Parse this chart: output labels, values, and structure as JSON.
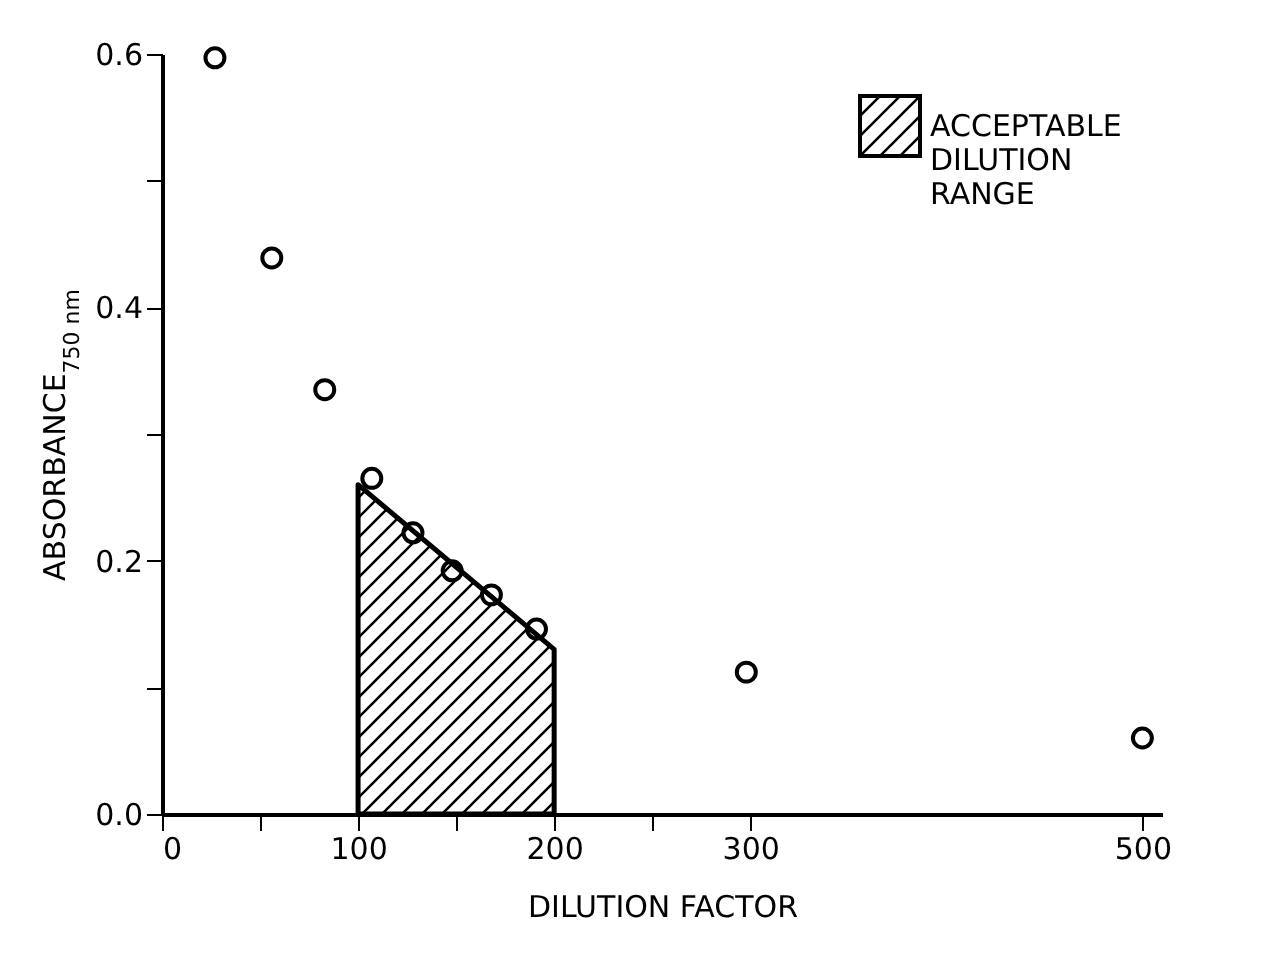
{
  "chart_data": {
    "type": "scatter",
    "xlabel": "DILUTION FACTOR",
    "ylabel": "ABSORBANCE$_{750 nm}$",
    "xlim": [
      0,
      510
    ],
    "ylim": [
      0,
      0.6
    ],
    "xticks": [
      0,
      {
        "value": 50,
        "label": null
      },
      100,
      {
        "value": 150,
        "label": null
      },
      200,
      {
        "value": 250,
        "label": null
      },
      300,
      500
    ],
    "yticks": [
      {
        "value": 0,
        "label": "0.0"
      },
      {
        "value": 0.1,
        "label": null
      },
      {
        "value": 0.2,
        "label": "0.2"
      },
      {
        "value": 0.3,
        "label": null
      },
      {
        "value": 0.4,
        "label": "0.4"
      },
      {
        "value": 0.5,
        "label": null
      },
      {
        "value": 0.6,
        "label": "0.6"
      }
    ],
    "legend": "top right",
    "grid": false,
    "series": [
      {
        "type": "area",
        "name": "ACCEPTABLE DILUTION RANGE",
        "color": "#000000",
        "x": [
          100,
          200
        ],
        "values": [
          0.26,
          0.13
        ]
      },
      {
        "color": "#000000",
        "marker": "circle",
        "x": [
          27,
          56,
          83,
          107,
          128,
          148,
          168,
          191,
          298,
          500
        ],
        "values": [
          0.597,
          0.439,
          0.335,
          0.265,
          0.222,
          0.192,
          0.173,
          0.146,
          0.112,
          0.06
        ]
      }
    ]
  }
}
